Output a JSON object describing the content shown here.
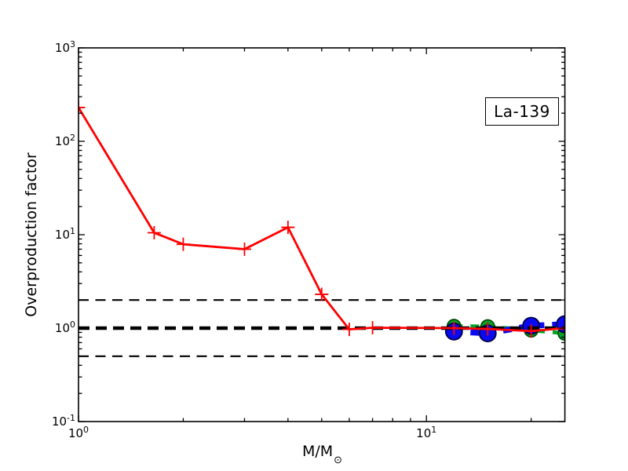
{
  "legend": {
    "label": "La-139",
    "position": "upper-right"
  },
  "chart_data": {
    "type": "line",
    "title": "",
    "xlabel_main": "M/M",
    "xlabel_sub": "⊙",
    "ylabel": "Overproduction factor",
    "x_scale": "log",
    "y_scale": "log",
    "xlim": [
      1,
      25
    ],
    "ylim": [
      0.1,
      1000
    ],
    "grid": false,
    "x_ticks": {
      "base": "10",
      "exponents": [
        0,
        1
      ]
    },
    "y_ticks": {
      "base": "10",
      "exponents": [
        3,
        2,
        1,
        0,
        -1
      ]
    },
    "reference_lines": [
      {
        "y": 2.0,
        "color": "#000000",
        "width": 2.1,
        "dash": "13 8.5",
        "role": "upper-band"
      },
      {
        "y": 0.5,
        "color": "#000000",
        "width": 2.1,
        "dash": "13 8.5",
        "role": "lower-band"
      },
      {
        "y": 1.0,
        "color": "#000000",
        "width": 4.6,
        "dash": "14 8",
        "role": "unity"
      }
    ],
    "series": [
      {
        "id": "green-dashed-circles",
        "color": "#00a32a",
        "edge_color": "#004d00",
        "line_style": "dashed",
        "line_width": 5,
        "dash": "11 10",
        "marker": "circle",
        "marker_size": 8.5,
        "x": [
          12,
          15,
          20,
          25
        ],
        "y": [
          1.05,
          1.04,
          0.95,
          0.88
        ]
      },
      {
        "id": "blue-dashed-circles",
        "color": "#0a0af0",
        "edge_color": "#000046",
        "line_style": "dashed",
        "line_width": 7.5,
        "dash": "11 10",
        "marker": "circle",
        "marker_size": 10.5,
        "x": [
          12,
          15,
          20,
          25
        ],
        "y": [
          0.92,
          0.88,
          1.06,
          1.1
        ]
      },
      {
        "id": "red-solid-plus",
        "color": "#ff0000",
        "edge_color": "#ff0000",
        "line_style": "solid",
        "line_width": 2.8,
        "marker": "plus",
        "marker_size": 8.5,
        "marker_line_width": 1.8,
        "x": [
          1,
          1.65,
          2,
          3,
          4,
          5,
          6,
          7,
          12,
          15,
          20,
          25
        ],
        "y": [
          230,
          10.5,
          7.9,
          7.0,
          12.0,
          2.3,
          0.97,
          1.01,
          1.0,
          0.98,
          0.93,
          1.0
        ]
      }
    ]
  }
}
